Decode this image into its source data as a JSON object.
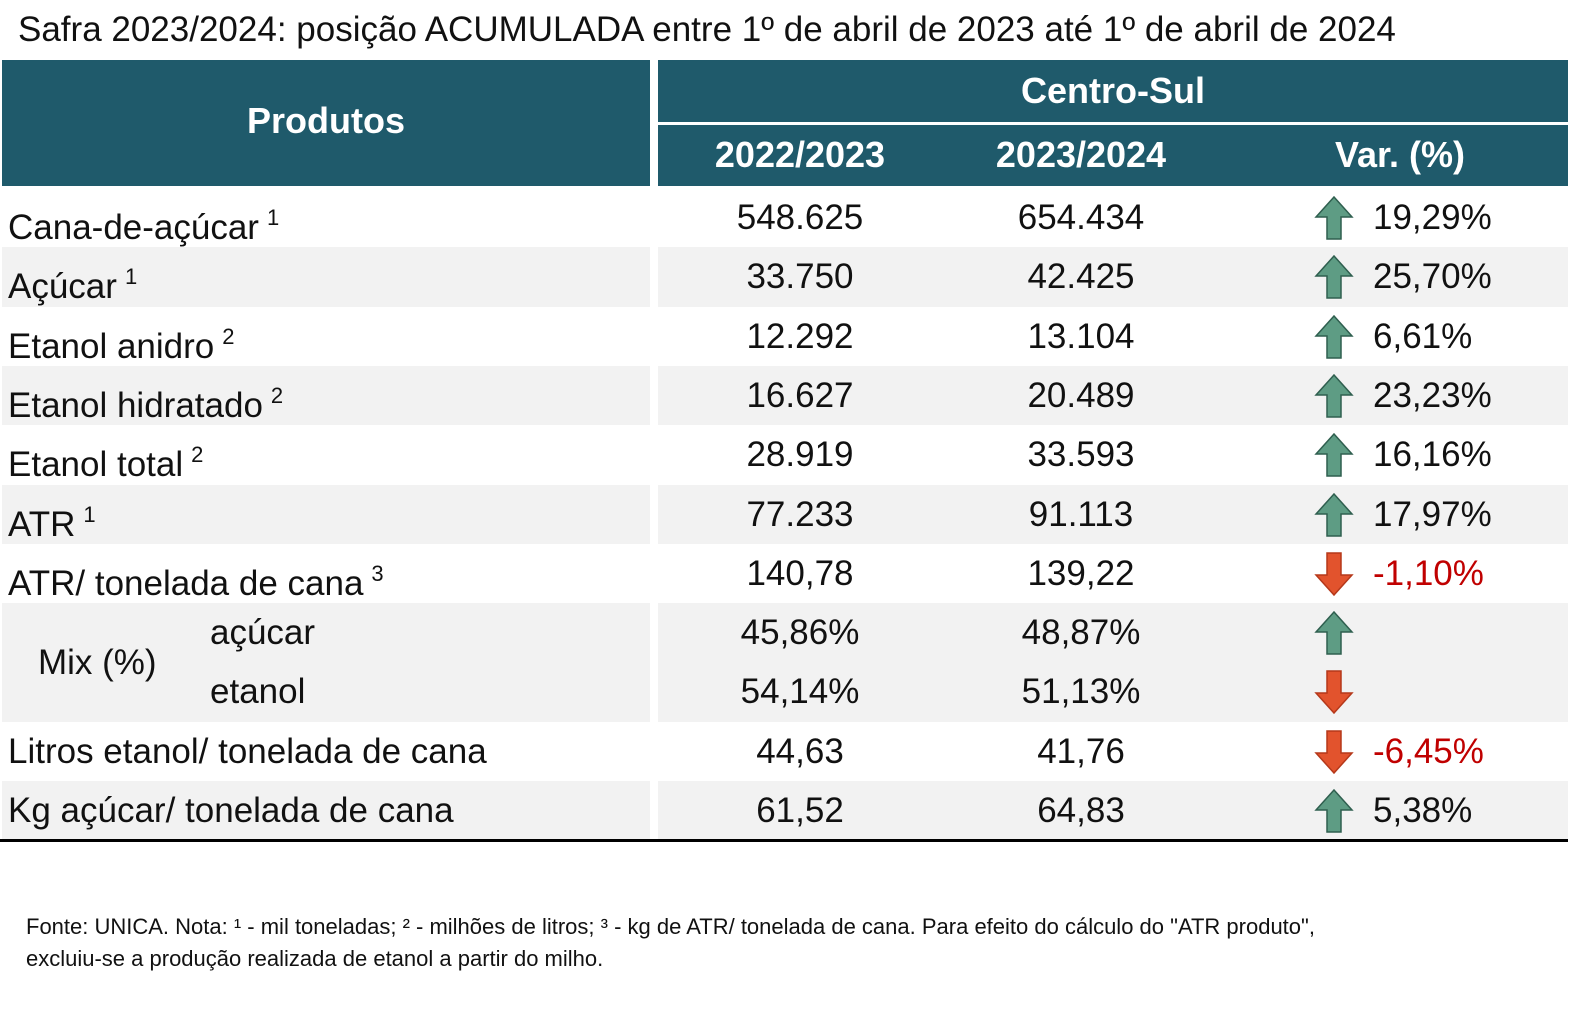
{
  "title": "Safra 2023/2024: posição ACUMULADA entre 1º de abril de 2023 até 1º de abril de 2024",
  "header": {
    "products": "Produtos",
    "region": "Centro-Sul",
    "columns": [
      "2022/2023",
      "2023/2024",
      "Var. (%)"
    ]
  },
  "colors": {
    "header": "#1f5a6b",
    "stripe": "#f2f2f2",
    "up": "#5e9c84",
    "down": "#e2532d",
    "negative_text": "#c00000"
  },
  "rows": [
    {
      "label": "Cana-de-açúcar",
      "note": "1",
      "values": [
        "548.625",
        "654.434"
      ],
      "var": "19,29%",
      "direction": "up"
    },
    {
      "label": "Açúcar",
      "note": "1",
      "values": [
        "33.750",
        "42.425"
      ],
      "var": "25,70%",
      "direction": "up"
    },
    {
      "label": "Etanol anidro",
      "note": "2",
      "values": [
        "12.292",
        "13.104"
      ],
      "var": "6,61%",
      "direction": "up"
    },
    {
      "label": "Etanol hidratado",
      "note": "2",
      "values": [
        "16.627",
        "20.489"
      ],
      "var": "23,23%",
      "direction": "up"
    },
    {
      "label": "Etanol total",
      "note": "2",
      "values": [
        "28.919",
        "33.593"
      ],
      "var": "16,16%",
      "direction": "up"
    },
    {
      "label": "ATR",
      "note": "1",
      "values": [
        "77.233",
        "91.113"
      ],
      "var": "17,97%",
      "direction": "up"
    },
    {
      "label": "ATR/ tonelada de cana",
      "note": "3",
      "values": [
        "140,78",
        "139,22"
      ],
      "var": "-1,10%",
      "direction": "down"
    },
    {
      "label": "Mix (%)",
      "sub": [
        {
          "label": "açúcar",
          "values": [
            "45,86%",
            "48,87%"
          ],
          "direction": "up"
        },
        {
          "label": "etanol",
          "values": [
            "54,14%",
            "51,13%"
          ],
          "direction": "down"
        }
      ]
    },
    {
      "label": "Litros etanol/ tonelada de cana",
      "values": [
        "44,63",
        "41,76"
      ],
      "var": "-6,45%",
      "direction": "down"
    },
    {
      "label": "Kg açúcar/ tonelada de cana",
      "values": [
        "61,52",
        "64,83"
      ],
      "var": "5,38%",
      "direction": "up"
    }
  ],
  "footnote": [
    "Fonte: UNICA. Nota: ¹ - mil toneladas; ² - milhões de litros; ³ - kg de ATR/ tonelada de cana. Para efeito do cálculo do \"ATR produto\",",
    "excluiu-se a produção realizada de etanol a partir do milho."
  ]
}
